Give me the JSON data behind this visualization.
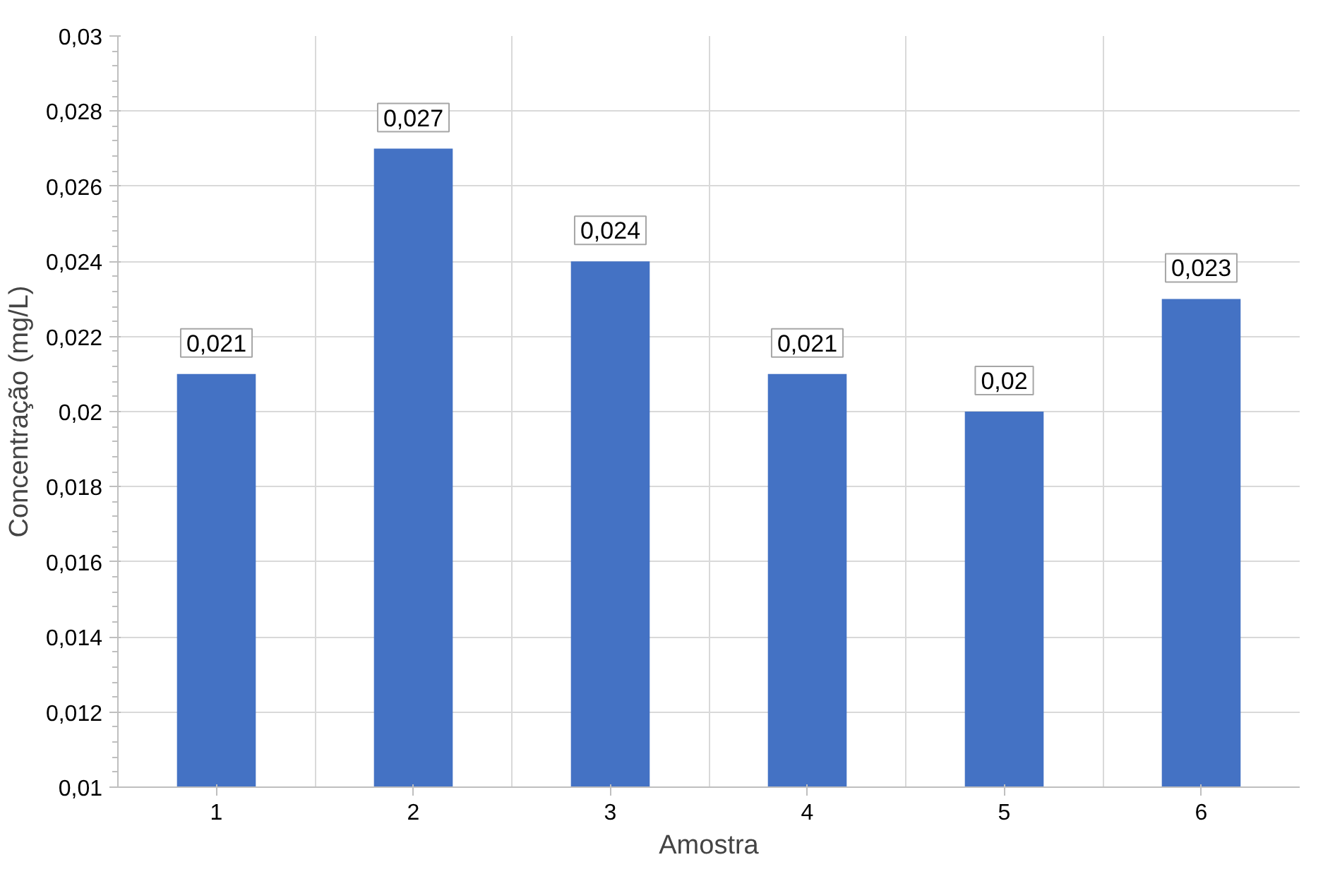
{
  "chart_data": {
    "type": "bar",
    "xlabel": "Amostra",
    "ylabel": "Concentração (mg/L)",
    "categories": [
      "1",
      "2",
      "3",
      "4",
      "5",
      "6"
    ],
    "values": [
      0.021,
      0.027,
      0.024,
      0.021,
      0.02,
      0.023
    ],
    "value_labels": [
      "0,021",
      "0,027",
      "0,024",
      "0,021",
      "0,02",
      "0,023"
    ],
    "color": "#4472c4",
    "ylim": [
      0.01,
      0.03
    ],
    "yticks": [
      {
        "value": 0.01,
        "label": "0,01"
      },
      {
        "value": 0.012,
        "label": "0,012"
      },
      {
        "value": 0.014,
        "label": "0,014"
      },
      {
        "value": 0.016,
        "label": "0,016"
      },
      {
        "value": 0.018,
        "label": "0,018"
      },
      {
        "value": 0.02,
        "label": "0,02"
      },
      {
        "value": 0.022,
        "label": "0,022"
      },
      {
        "value": 0.024,
        "label": "0,024"
      },
      {
        "value": 0.026,
        "label": "0,026"
      },
      {
        "value": 0.028,
        "label": "0,028"
      },
      {
        "value": 0.03,
        "label": "0,03"
      }
    ],
    "grid": true
  }
}
